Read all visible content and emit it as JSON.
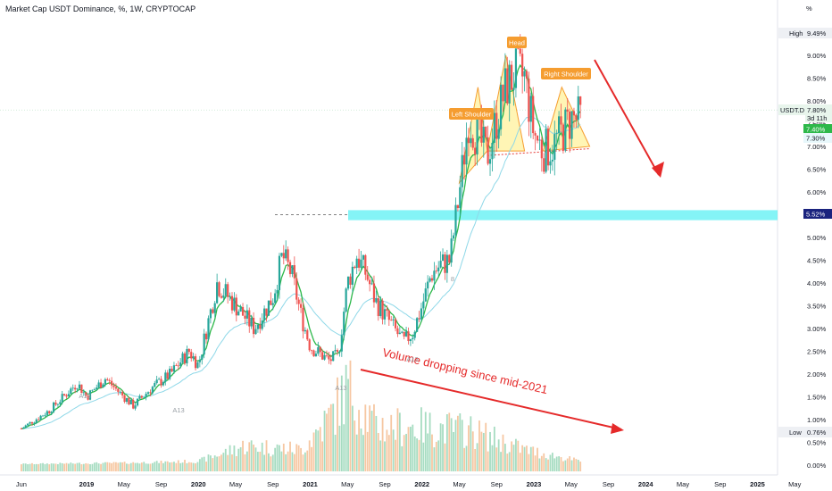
{
  "chart_data": {
    "type": "candlestick",
    "title": "Market Cap USDT Dominance, %, 1W, CRYPTOCAP",
    "y_unit": "%",
    "ylim": [
      0,
      10
    ],
    "y_ticks": [
      "0.00%",
      "0.50%",
      "1.00%",
      "1.50%",
      "2.00%",
      "2.50%",
      "3.00%",
      "3.50%",
      "4.00%",
      "4.50%",
      "5.00%",
      "5.50%",
      "6.00%",
      "6.50%",
      "7.00%",
      "7.50%",
      "8.00%",
      "8.50%",
      "9.00%"
    ],
    "x_ticks": [
      "Jun",
      "2019",
      "May",
      "Sep",
      "2020",
      "May",
      "Sep",
      "2021",
      "May",
      "Sep",
      "2022",
      "May",
      "Sep",
      "2023",
      "May",
      "Sep",
      "2024",
      "May",
      "Sep",
      "2025",
      "May"
    ],
    "price_path": [
      [
        "2018-06",
        0.8
      ],
      [
        "2018-09",
        1.2
      ],
      [
        "2018-12",
        1.8
      ],
      [
        "2019-01",
        1.5
      ],
      [
        "2019-03",
        1.9
      ],
      [
        "2019-06",
        1.3
      ],
      [
        "2019-08",
        1.7
      ],
      [
        "2019-10",
        2.0
      ],
      [
        "2019-12",
        2.5
      ],
      [
        "2020-01",
        2.2
      ],
      [
        "2020-03",
        4.0
      ],
      [
        "2020-05",
        3.5
      ],
      [
        "2020-07",
        3.0
      ],
      [
        "2020-09",
        3.7
      ],
      [
        "2020-10",
        4.6
      ],
      [
        "2020-11",
        4.2
      ],
      [
        "2020-12",
        3.3
      ],
      [
        "2021-01",
        2.6
      ],
      [
        "2021-03",
        2.3
      ],
      [
        "2021-04",
        2.4
      ],
      [
        "2021-05",
        4.0
      ],
      [
        "2021-06",
        4.6
      ],
      [
        "2021-07",
        4.2
      ],
      [
        "2021-08",
        3.6
      ],
      [
        "2021-09",
        3.3
      ],
      [
        "2021-10",
        3.0
      ],
      [
        "2021-11",
        2.7
      ],
      [
        "2021-12",
        2.9
      ],
      [
        "2022-01",
        3.5
      ],
      [
        "2022-02",
        4.2
      ],
      [
        "2022-03",
        4.4
      ],
      [
        "2022-04",
        4.5
      ],
      [
        "2022-05",
        6.0
      ],
      [
        "2022-06",
        7.6
      ],
      [
        "2022-07",
        7.2
      ],
      [
        "2022-08",
        6.8
      ],
      [
        "2022-09",
        7.6
      ],
      [
        "2022-10",
        8.3
      ],
      [
        "2022-11",
        8.6
      ],
      [
        "2022-12",
        8.5
      ],
      [
        "2023-01",
        7.3
      ],
      [
        "2023-02",
        6.9
      ],
      [
        "2023-03",
        7.0
      ],
      [
        "2023-04",
        7.3
      ],
      [
        "2023-05",
        7.6
      ],
      [
        "2023-06",
        7.6
      ]
    ],
    "volume_path": [
      [
        "2018-06",
        0.03
      ],
      [
        "2019-06",
        0.06
      ],
      [
        "2020-01",
        0.1
      ],
      [
        "2020-06",
        0.5
      ],
      [
        "2020-12",
        0.4
      ],
      [
        "2021-03",
        1.2
      ],
      [
        "2021-05",
        2.0
      ],
      [
        "2021-08",
        1.0
      ],
      [
        "2021-12",
        1.0
      ],
      [
        "2022-06",
        0.9
      ],
      [
        "2022-12",
        0.4
      ],
      [
        "2023-06",
        0.1
      ]
    ],
    "high_label": "High",
    "high_value": "9.49%",
    "low_label": "Low",
    "low_value": "0.76%",
    "symbol_label": "USDT.D",
    "last_price": "7.80%",
    "countdown": "3d 11h",
    "green_price": "7.40%",
    "support_price": "7.30%",
    "zone_price": "5.52%",
    "zone_range": [
      5.38,
      5.6
    ],
    "annotations": {
      "left_shoulder": "Left Shoulder",
      "head": "Head",
      "right_shoulder": "Right Shoulder",
      "volume_note": "Volume dropping since mid-2021",
      "markers": [
        "A13",
        "A13",
        "A13",
        "A13",
        "8"
      ]
    },
    "colors": {
      "bull": "#26a69a",
      "bear": "#ef5350",
      "ema_green": "#2db84a",
      "ema_light": "#8fd8e8",
      "zone": "#6ef2f5",
      "orange": "#f59d30",
      "pattern_fill": "#fff3a3",
      "arrow": "#e52a2a"
    }
  }
}
